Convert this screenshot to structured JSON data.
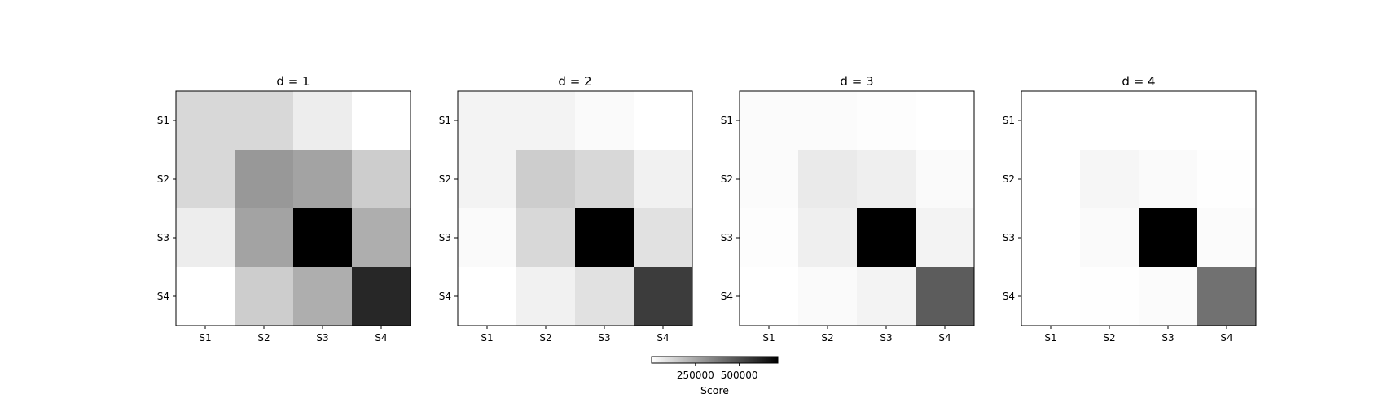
{
  "chart_data": {
    "type": "heatmap",
    "colormap": "Greys",
    "colorbar": {
      "label": "Score",
      "ticks": [
        250000,
        500000
      ],
      "tick_labels": [
        "250000",
        "500000"
      ],
      "range": [
        0,
        720000
      ],
      "placement": "bottom-center"
    },
    "panels": [
      {
        "title": "d = 1",
        "x_labels": [
          "S1",
          "S2",
          "S3",
          "S4"
        ],
        "y_labels": [
          "S1",
          "S2",
          "S3",
          "S4"
        ],
        "values": [
          [
            110000,
            110000,
            50000,
            0
          ],
          [
            110000,
            290000,
            260000,
            140000
          ],
          [
            50000,
            260000,
            720000,
            230000
          ],
          [
            0,
            140000,
            230000,
            610000
          ]
        ]
      },
      {
        "title": "d = 2",
        "x_labels": [
          "S1",
          "S2",
          "S3",
          "S4"
        ],
        "y_labels": [
          "S1",
          "S2",
          "S3",
          "S4"
        ],
        "values": [
          [
            35000,
            35000,
            15000,
            0
          ],
          [
            35000,
            140000,
            110000,
            40000
          ],
          [
            15000,
            110000,
            720000,
            85000
          ],
          [
            0,
            40000,
            85000,
            550000
          ]
        ]
      },
      {
        "title": "d = 3",
        "x_labels": [
          "S1",
          "S2",
          "S3",
          "S4"
        ],
        "y_labels": [
          "S1",
          "S2",
          "S3",
          "S4"
        ],
        "values": [
          [
            10000,
            10000,
            5000,
            0
          ],
          [
            10000,
            60000,
            45000,
            15000
          ],
          [
            5000,
            45000,
            720000,
            35000
          ],
          [
            0,
            15000,
            35000,
            460000
          ]
        ]
      },
      {
        "title": "d = 4",
        "x_labels": [
          "S1",
          "S2",
          "S3",
          "S4"
        ],
        "y_labels": [
          "S1",
          "S2",
          "S3",
          "S4"
        ],
        "values": [
          [
            0,
            0,
            0,
            0
          ],
          [
            0,
            25000,
            15000,
            3000
          ],
          [
            0,
            15000,
            720000,
            10000
          ],
          [
            0,
            3000,
            10000,
            400000
          ]
        ]
      }
    ]
  }
}
